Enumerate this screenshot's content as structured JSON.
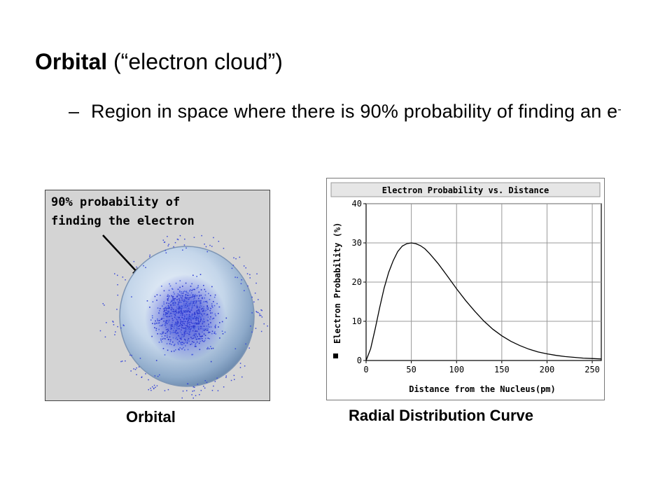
{
  "slide": {
    "title_bold": "Orbital",
    "title_rest": " (“electron cloud”)",
    "bullet_dash": "–",
    "bullet_text": "Region in space where there is 90% probability of finding an e",
    "bullet_sup": "-"
  },
  "orbital_figure": {
    "label_line1": "90% probability of",
    "label_line2": "finding the electron",
    "caption": "Orbital"
  },
  "chart_data": {
    "type": "line",
    "title": "Electron Probability vs. Distance",
    "xlabel": "Distance from the Nucleus(pm)",
    "ylabel": "Electron Probability (%)",
    "xlim": [
      0,
      260
    ],
    "ylim": [
      0,
      40
    ],
    "xticks": [
      0,
      50,
      100,
      150,
      200,
      250
    ],
    "yticks": [
      0,
      10,
      20,
      30,
      40
    ],
    "grid": true,
    "series": [
      {
        "x": [
          0,
          5,
          10,
          15,
          20,
          25,
          30,
          35,
          40,
          45,
          50,
          55,
          60,
          65,
          70,
          75,
          80,
          90,
          100,
          110,
          120,
          130,
          140,
          150,
          160,
          170,
          180,
          190,
          200,
          210,
          220,
          230,
          240,
          250,
          260
        ],
        "values": [
          0,
          3,
          8,
          13.5,
          18.5,
          22.5,
          25.5,
          27.8,
          29.2,
          29.8,
          30,
          29.8,
          29.3,
          28.5,
          27.3,
          26,
          24.6,
          21.5,
          18.3,
          15.3,
          12.6,
          10.1,
          8.0,
          6.3,
          4.9,
          3.8,
          2.9,
          2.2,
          1.7,
          1.3,
          1.0,
          0.8,
          0.6,
          0.5,
          0.4
        ]
      }
    ],
    "caption": "Radial Distribution Curve"
  }
}
